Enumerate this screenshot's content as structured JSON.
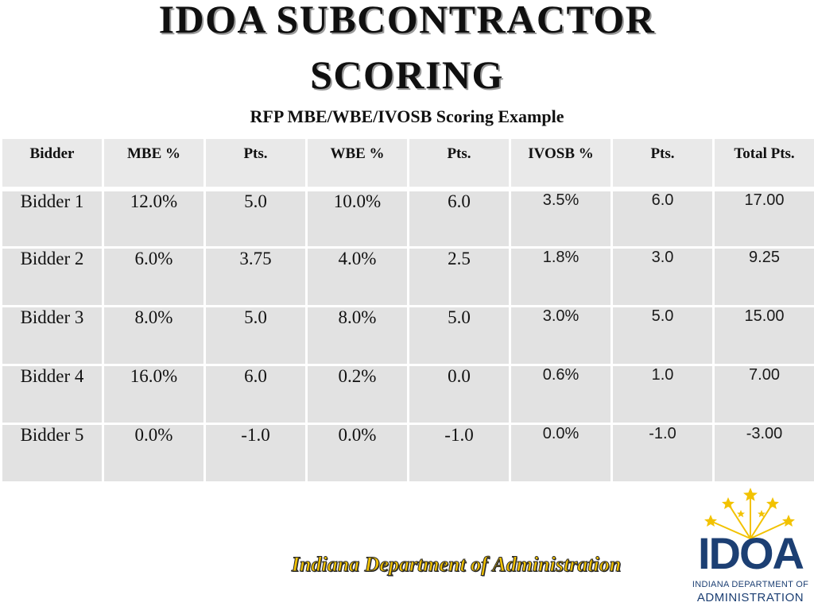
{
  "slide": {
    "title_line1": "IDOA SUBCONTRACTOR",
    "title_line2": "SCORING",
    "subtitle": "RFP MBE/WBE/IVOSB Scoring Example",
    "footer": "Indiana Department of Administration"
  },
  "table": {
    "headers": [
      "Bidder",
      "MBE %",
      "Pts.",
      "WBE %",
      "Pts.",
      "IVOSB %",
      "Pts.",
      "Total Pts."
    ],
    "rows": [
      [
        "Bidder 1",
        "12.0%",
        "5.0",
        "10.0%",
        "6.0",
        "3.5%",
        "6.0",
        "17.00"
      ],
      [
        "Bidder 2",
        "6.0%",
        "3.75",
        "4.0%",
        "2.5",
        "1.8%",
        "3.0",
        "9.25"
      ],
      [
        "Bidder 3",
        "8.0%",
        "5.0",
        "8.0%",
        "5.0",
        "3.0%",
        "5.0",
        "15.00"
      ],
      [
        "Bidder 4",
        "16.0%",
        "6.0",
        "0.2%",
        "0.0",
        "0.6%",
        "1.0",
        "7.00"
      ],
      [
        "Bidder 5",
        "0.0%",
        "-1.0",
        "0.0%",
        "-1.0",
        "0.0%",
        "-1.0",
        "-3.00"
      ]
    ]
  },
  "logo": {
    "letters": "IDOA",
    "line1": "INDIANA DEPARTMENT OF",
    "line2": "ADMINISTRATION",
    "star_color": "#f2c200",
    "text_color": "#1c3f73"
  }
}
